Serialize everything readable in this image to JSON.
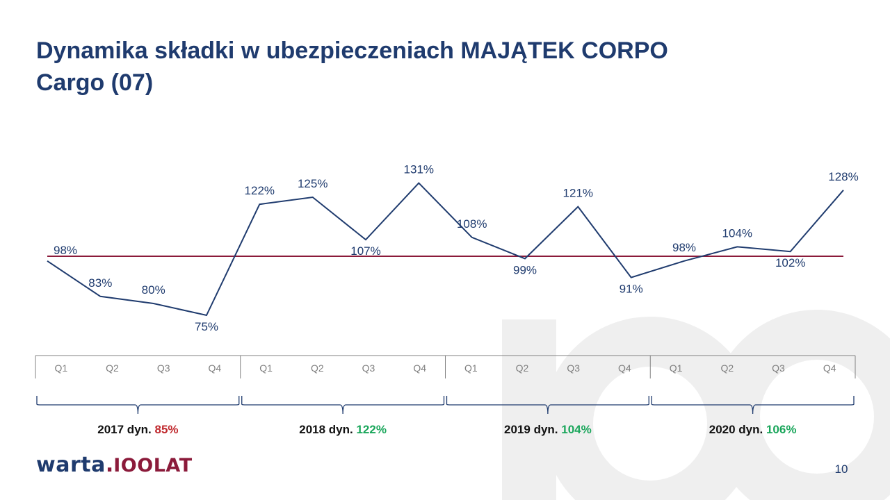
{
  "title_line1": "Dynamika składki w ubezpieczeniach MAJĄTEK CORPO",
  "title_line2": "Cargo (07)",
  "logo": {
    "main": "warta",
    "separator": ".",
    "suffix": "IOOLAT"
  },
  "page_number": "10",
  "colors": {
    "title": "#1f3b6e",
    "line": "#1f3b6e",
    "reference_line": "#8b1a3a",
    "negative": "#c0282d",
    "positive": "#1aa65b",
    "axis": "#808080"
  },
  "chart_data": {
    "type": "line",
    "categories": [
      "Q1",
      "Q2",
      "Q3",
      "Q4",
      "Q1",
      "Q2",
      "Q3",
      "Q4",
      "Q1",
      "Q2",
      "Q3",
      "Q4",
      "Q1",
      "Q2",
      "Q3",
      "Q4"
    ],
    "values": [
      98,
      83,
      80,
      75,
      122,
      125,
      107,
      131,
      108,
      99,
      121,
      91,
      98,
      104,
      102,
      128
    ],
    "labels": [
      "98%",
      "83%",
      "80%",
      "75%",
      "122%",
      "125%",
      "107%",
      "131%",
      "108%",
      "99%",
      "121%",
      "91%",
      "98%",
      "104%",
      "102%",
      "128%"
    ],
    "reference_line": 100,
    "groups": [
      {
        "year": "2017",
        "label": "2017 dyn.",
        "value": "85%",
        "status": "negative"
      },
      {
        "year": "2018",
        "label": "2018 dyn.",
        "value": "122%",
        "status": "positive"
      },
      {
        "year": "2019",
        "label": "2019 dyn.",
        "value": "104%",
        "status": "positive"
      },
      {
        "year": "2020",
        "label": "2020 dyn.",
        "value": "106%",
        "status": "positive"
      }
    ]
  }
}
